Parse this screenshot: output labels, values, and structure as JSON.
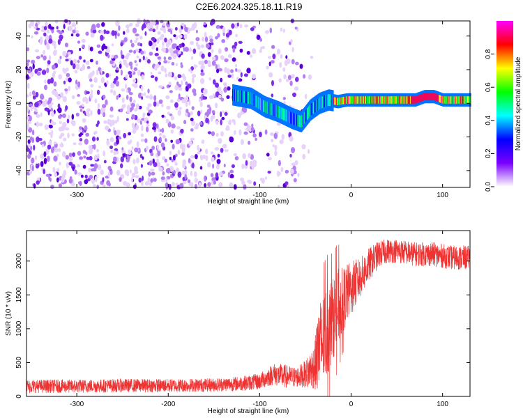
{
  "chart_data": [
    {
      "type": "heatmap",
      "title": "C2E6.2024.325.18.11.R19",
      "xlabel": "Height of straight line (km)",
      "ylabel": "Frequency (Hz)",
      "xlim": [
        -355,
        130
      ],
      "ylim": [
        -50,
        49
      ],
      "xticks": [
        -300,
        -200,
        -100,
        0,
        100
      ],
      "yticks": [
        -40,
        -20,
        0,
        20,
        40
      ],
      "colorbar": {
        "label": "Normalized spectral amplitude",
        "range": [
          0,
          1
        ],
        "ticks": [
          "0.0",
          "0.2",
          "0.4",
          "0.6",
          "0.8"
        ],
        "colors": [
          "#ffffff",
          "#7a00ff",
          "#0000ff",
          "#00ffff",
          "#00ff00",
          "#ffff00",
          "#ff0000",
          "#ff00ff"
        ]
      },
      "ridge": {
        "description_values_x": [
          -130,
          -110,
          -95,
          -80,
          -65,
          -55,
          -45,
          -35,
          -25,
          -15,
          -5,
          0,
          30,
          70,
          80,
          90,
          100,
          130
        ],
        "freq_values": [
          5,
          3,
          -2,
          -5,
          -9,
          -11,
          -4,
          0,
          2,
          1,
          2,
          2,
          2,
          2,
          4,
          4,
          2,
          2
        ]
      }
    },
    {
      "type": "line",
      "xlabel": "Height of straight line (km)",
      "ylabel": "SNR (10 * v/v)",
      "xlim": [
        -355,
        130
      ],
      "ylim": [
        0,
        2450
      ],
      "xticks": [
        -300,
        -200,
        -100,
        0,
        100
      ],
      "yticks": [
        0,
        500,
        1000,
        1500,
        2000
      ],
      "series": [
        {
          "color": "#ee3333",
          "x": [
            -355,
            -300,
            -250,
            -200,
            -150,
            -120,
            -100,
            -85,
            -75,
            -60,
            -50,
            -40,
            -35,
            -30,
            -25,
            -20,
            -15,
            -10,
            -5,
            0,
            10,
            20,
            30,
            40,
            50,
            70,
            90,
            110,
            130
          ],
          "y": [
            150,
            150,
            160,
            160,
            170,
            190,
            220,
            330,
            300,
            280,
            330,
            450,
            700,
            850,
            1000,
            1150,
            1300,
            1400,
            1500,
            1600,
            1750,
            1950,
            2100,
            2150,
            2150,
            2100,
            2100,
            2050,
            2050
          ],
          "noise_amplitude": [
            100,
            100,
            100,
            100,
            100,
            110,
            120,
            160,
            180,
            150,
            200,
            350,
            700,
            700,
            700,
            600,
            600,
            500,
            450,
            400,
            300,
            250,
            200,
            180,
            180,
            180,
            180,
            180,
            180
          ]
        }
      ]
    }
  ]
}
